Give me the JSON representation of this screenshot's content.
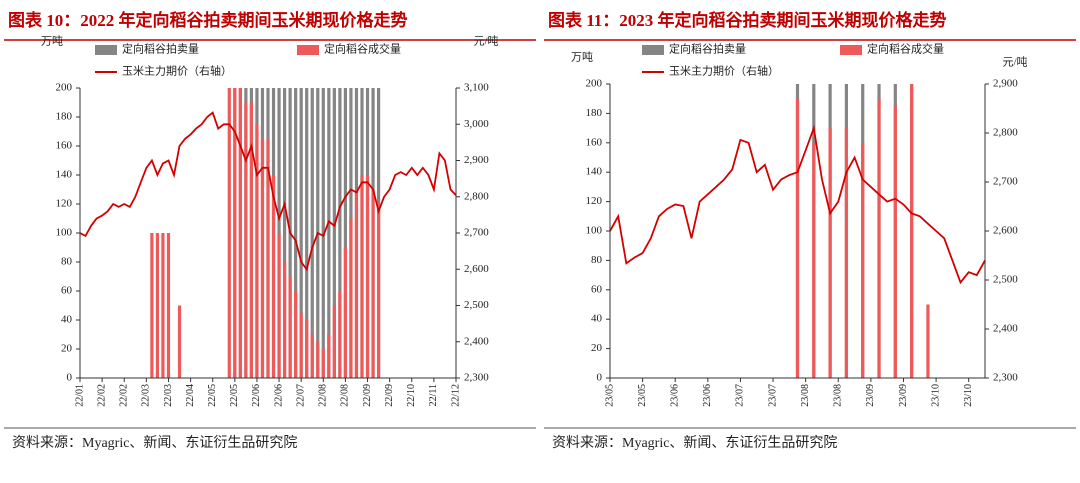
{
  "chart_data": {
    "type": "combo",
    "charts": [
      {
        "type": "combo",
        "title": "图表 10：2022 年定向稻谷拍卖期间玉米期现价格走势",
        "source": "资料来源：Myagric、新闻、东证衍生品研究院",
        "y_unit": "万吨",
        "y2_unit": "元/吨",
        "categories": [
          "22/01",
          null,
          null,
          null,
          "22/02",
          null,
          null,
          null,
          "22/02",
          null,
          null,
          null,
          "22/03",
          null,
          null,
          null,
          "22/03",
          null,
          null,
          null,
          "22/04",
          null,
          null,
          null,
          "22/05",
          null,
          null,
          null,
          "22/05",
          null,
          null,
          null,
          "22/06",
          null,
          null,
          null,
          "22/06",
          null,
          null,
          null,
          "22/07",
          null,
          null,
          null,
          "22/08",
          null,
          null,
          null,
          "22/08",
          null,
          null,
          null,
          "22/09",
          null,
          null,
          null,
          "22/09",
          null,
          null,
          null,
          "22/10",
          null,
          null,
          null,
          "22/11",
          null,
          null,
          null,
          "22/12"
        ],
        "series": [
          {
            "name": "定向稻谷拍卖量",
            "color": "#858585",
            "type": "bar",
            "values": [
              null,
              null,
              null,
              null,
              null,
              null,
              null,
              null,
              null,
              null,
              null,
              null,
              null,
              null,
              null,
              null,
              null,
              null,
              null,
              null,
              null,
              null,
              null,
              null,
              null,
              null,
              null,
              null,
              200,
              200,
              200,
              200,
              200,
              200,
              200,
              200,
              200,
              200,
              200,
              200,
              200,
              200,
              200,
              200,
              200,
              200,
              200,
              200,
              200,
              200,
              200,
              200,
              200,
              200,
              200,
              null,
              null,
              null,
              null,
              null,
              null,
              null,
              null,
              null,
              null,
              null,
              null,
              null,
              null
            ]
          },
          {
            "name": "定向稻谷成交量",
            "color": "#ee5a5a",
            "type": "bar",
            "values": [
              null,
              null,
              null,
              null,
              null,
              null,
              null,
              null,
              null,
              null,
              null,
              null,
              null,
              100,
              100,
              100,
              100,
              null,
              50,
              null,
              null,
              null,
              null,
              null,
              null,
              null,
              null,
              200,
              200,
              200,
              190,
              190,
              175,
              165,
              165,
              140,
              100,
              80,
              70,
              60,
              45,
              40,
              30,
              25,
              20,
              30,
              50,
              60,
              90,
              110,
              130,
              140,
              140,
              130,
              120,
              null,
              null,
              null,
              null,
              null,
              null,
              null,
              null,
              null,
              null,
              null,
              null,
              null,
              null
            ]
          },
          {
            "name": "玉米主力期价（右轴）",
            "color": "#d40000",
            "type": "line",
            "axis": "y2",
            "values": [
              2700,
              2692,
              2720,
              2740,
              2748,
              2760,
              2780,
              2772,
              2780,
              2772,
              2800,
              2840,
              2880,
              2900,
              2860,
              2892,
              2900,
              2860,
              2940,
              2960,
              2972,
              2988,
              3000,
              3020,
              3032,
              2988,
              3000,
              3000,
              2980,
              2940,
              2900,
              2940,
              2860,
              2880,
              2880,
              2800,
              2740,
              2780,
              2700,
              2680,
              2620,
              2600,
              2660,
              2700,
              2692,
              2732,
              2720,
              2772,
              2800,
              2820,
              2812,
              2840,
              2840,
              2820,
              2760,
              2800,
              2820,
              2860,
              2868,
              2860,
              2880,
              2860,
              2880,
              2860,
              2820,
              2920,
              2900,
              2820,
              2804
            ]
          }
        ],
        "ylim": [
          0,
          200
        ],
        "yticks": [
          0,
          20,
          40,
          60,
          80,
          100,
          120,
          140,
          160,
          180,
          200
        ],
        "y2lim": [
          2300,
          3100
        ],
        "y2ticks": [
          {
            "value": 2300,
            "label": "2,300"
          },
          {
            "value": 2400,
            "label": "2,400"
          },
          {
            "value": 2500,
            "label": "2,500"
          },
          {
            "value": 2600,
            "label": "2,600"
          },
          {
            "value": 2700,
            "label": "2,700"
          },
          {
            "value": 2800,
            "label": "2,800"
          },
          {
            "value": 2900,
            "label": "2,900"
          },
          {
            "value": 3000,
            "label": "3,000"
          },
          {
            "value": 3100,
            "label": "3,100"
          }
        ]
      },
      {
        "type": "combo",
        "title": "图表 11：2023 年定向稻谷拍卖期间玉米期现价格走势",
        "source": "资料来源：Myagric、新闻、东证衍生品研究院",
        "y_unit": "万吨",
        "y2_unit": "元/吨",
        "categories": [
          "23/05",
          null,
          null,
          null,
          "23/05",
          null,
          null,
          null,
          "23/06",
          null,
          null,
          null,
          "23/06",
          null,
          null,
          null,
          "23/07",
          null,
          null,
          null,
          "23/07",
          null,
          null,
          null,
          "23/08",
          null,
          null,
          null,
          "23/08",
          null,
          null,
          null,
          "23/09",
          null,
          null,
          null,
          "23/09",
          null,
          null,
          null,
          "23/10",
          null,
          null,
          null,
          "23/10",
          null,
          null
        ],
        "series": [
          {
            "name": "定向稻谷拍卖量",
            "color": "#858585",
            "type": "bar",
            "values": [
              null,
              null,
              null,
              null,
              null,
              null,
              null,
              null,
              null,
              null,
              null,
              null,
              null,
              null,
              null,
              null,
              null,
              null,
              null,
              null,
              null,
              null,
              null,
              200,
              null,
              200,
              null,
              200,
              null,
              200,
              null,
              200,
              null,
              200,
              null,
              200,
              null,
              200,
              null,
              null,
              null,
              null,
              null,
              null,
              null,
              null,
              null
            ]
          },
          {
            "name": "定向稻谷成交量",
            "color": "#ee5a5a",
            "type": "bar",
            "values": [
              null,
              null,
              null,
              null,
              null,
              null,
              null,
              null,
              null,
              null,
              null,
              null,
              null,
              null,
              null,
              null,
              null,
              null,
              null,
              null,
              null,
              null,
              null,
              190,
              null,
              160,
              null,
              170,
              null,
              170,
              null,
              160,
              null,
              190,
              null,
              185,
              null,
              200,
              null,
              50,
              null,
              null,
              null,
              null,
              null,
              null,
              null
            ]
          },
          {
            "name": "玉米主力期价（右轴）",
            "color": "#d40000",
            "type": "line",
            "axis": "y2",
            "values": [
              2600,
              2630,
              2534,
              2546,
              2555,
              2585,
              2630,
              2645,
              2654,
              2651,
              2585,
              2660,
              2675,
              2690,
              2705,
              2726,
              2786,
              2780,
              2720,
              2735,
              2684,
              2705,
              2714,
              2720,
              2765,
              2810,
              2705,
              2636,
              2660,
              2720,
              2750,
              2705,
              2690,
              2675,
              2660,
              2666,
              2654,
              2636,
              2630,
              2615,
              2600,
              2585,
              2540,
              2495,
              2516,
              2510,
              2540
            ]
          }
        ],
        "ylim": [
          0,
          200
        ],
        "yticks": [
          0,
          20,
          40,
          60,
          80,
          100,
          120,
          140,
          160,
          180,
          200
        ],
        "y2lim": [
          2300,
          2900
        ],
        "y2ticks": [
          {
            "value": 2300,
            "label": "2,300"
          },
          {
            "value": 2400,
            "label": "2,400"
          },
          {
            "value": 2500,
            "label": "2,500"
          },
          {
            "value": 2600,
            "label": "2,600"
          },
          {
            "value": 2700,
            "label": "2,700"
          },
          {
            "value": 2800,
            "label": "2,800"
          },
          {
            "value": 2900,
            "label": "2,900"
          }
        ]
      }
    ]
  }
}
